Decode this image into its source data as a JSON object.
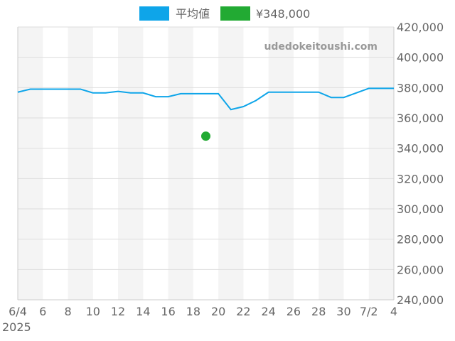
{
  "chart_data": {
    "type": "line",
    "title": "",
    "xlabel": "",
    "ylabel": "",
    "watermark": "udedokeitoushi.com",
    "ylim": [
      240000,
      420000
    ],
    "yticks": [
      "240,000",
      "260,000",
      "280,000",
      "300,000",
      "320,000",
      "340,000",
      "360,000",
      "380,000",
      "400,000",
      "420,000"
    ],
    "xticks": [
      "6/4",
      "6",
      "8",
      "10",
      "12",
      "14",
      "16",
      "18",
      "20",
      "22",
      "24",
      "26",
      "28",
      "30",
      "7/2",
      "4"
    ],
    "xyear": "2025",
    "grid": true,
    "legend_position": "top",
    "series": [
      {
        "name": "平均値",
        "color": "#0ea5e9",
        "dates": [
          "6/4",
          "6/5",
          "6/6",
          "6/7",
          "6/8",
          "6/9",
          "6/10",
          "6/11",
          "6/12",
          "6/13",
          "6/14",
          "6/15",
          "6/16",
          "6/17",
          "6/18",
          "6/19",
          "6/20",
          "6/21",
          "6/22",
          "6/23",
          "6/24",
          "6/25",
          "6/26",
          "6/27",
          "6/28",
          "6/29",
          "6/30",
          "7/1",
          "7/2",
          "7/3",
          "7/4"
        ],
        "values": [
          377000,
          379000,
          379000,
          379000,
          379000,
          379000,
          376500,
          376500,
          377500,
          376500,
          376500,
          374000,
          374000,
          376000,
          376000,
          376000,
          376000,
          365500,
          367500,
          371500,
          377000,
          377000,
          377000,
          377000,
          377000,
          373500,
          373500,
          376500,
          379500,
          379500,
          379500
        ]
      },
      {
        "name": "¥348,000",
        "color": "#22aa33",
        "dates": [
          "6/19"
        ],
        "values": [
          348000
        ]
      }
    ]
  }
}
